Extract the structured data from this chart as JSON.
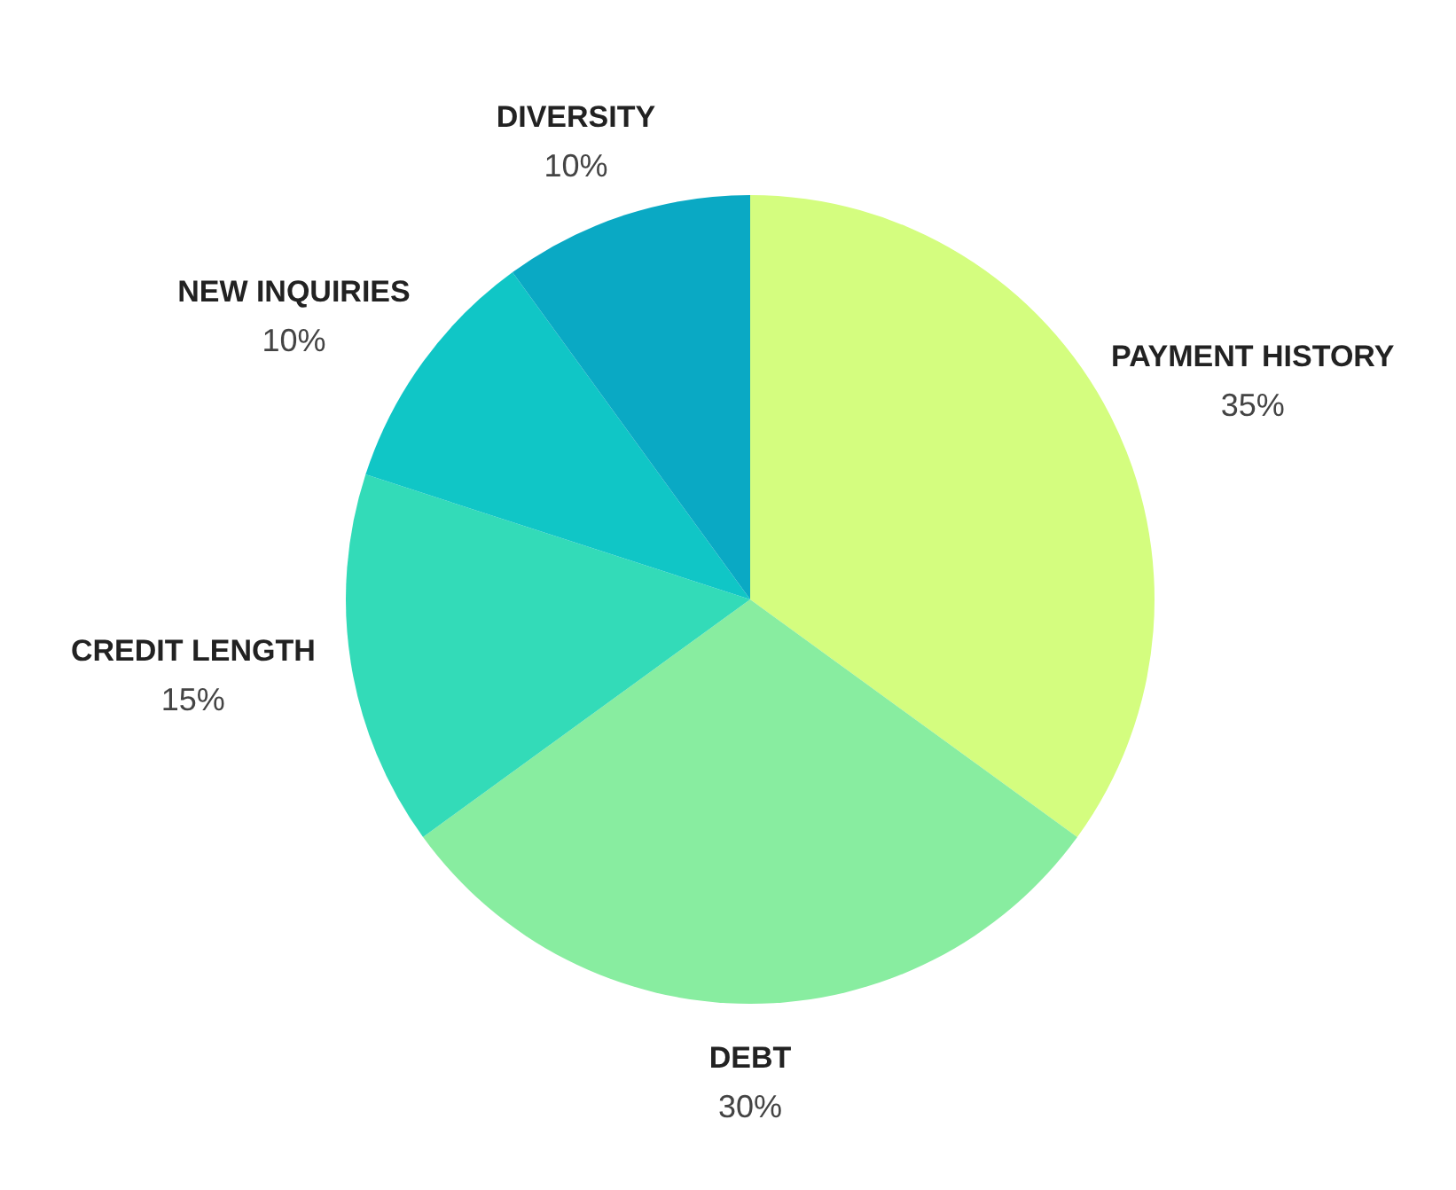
{
  "chart_data": {
    "type": "pie",
    "categories": [
      "PAYMENT HISTORY",
      "DEBT",
      "CREDIT LENGTH",
      "NEW INQUIRIES",
      "DIVERSITY"
    ],
    "values": [
      35,
      30,
      15,
      10,
      10
    ],
    "colors": [
      "#d4fd7f",
      "#88eda0",
      "#33dbb8",
      "#10c6c6",
      "#0aa9c4"
    ],
    "value_labels": [
      "35%",
      "30%",
      "15%",
      "10%",
      "10%"
    ]
  }
}
